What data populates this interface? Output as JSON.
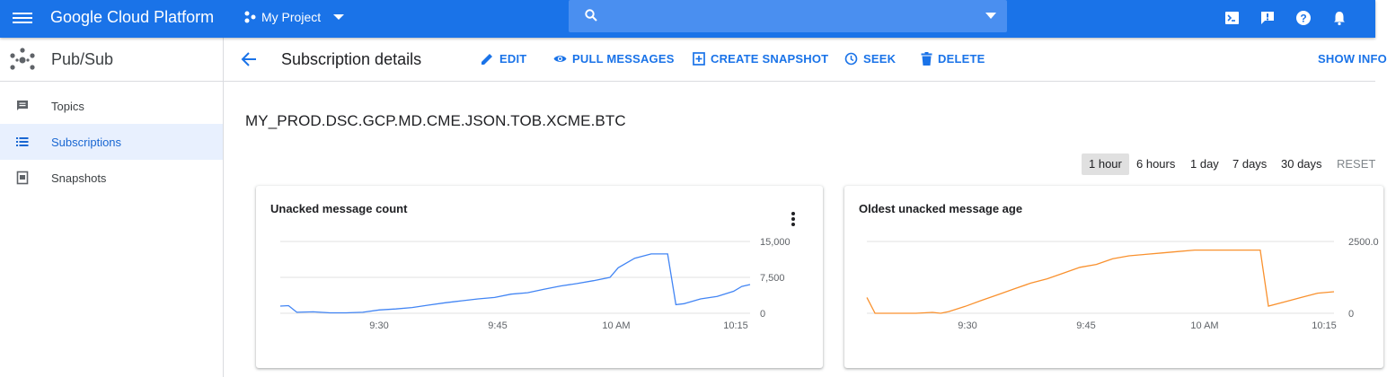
{
  "topbar": {
    "brand": "Google Cloud Platform",
    "project": "My Project",
    "search_placeholder": "",
    "icons": [
      "menu-icon",
      "project-dots-icon",
      "search-icon",
      "dropdown-arrow-icon",
      "cloud-shell-icon",
      "notifications-alert-icon",
      "help-icon",
      "bell-icon"
    ]
  },
  "sidebar": {
    "title": "Pub/Sub",
    "items": [
      {
        "label": "Topics",
        "icon": "topics-icon"
      },
      {
        "label": "Subscriptions",
        "icon": "list-icon",
        "active": true
      },
      {
        "label": "Snapshots",
        "icon": "snapshot-icon"
      }
    ]
  },
  "header": {
    "title": "Subscription details",
    "actions": {
      "edit": "EDIT",
      "pull": "PULL MESSAGES",
      "snapshot": "CREATE SNAPSHOT",
      "seek": "SEEK",
      "delete": "DELETE",
      "info": "SHOW INFO"
    }
  },
  "main": {
    "subscription_id": "MY_PROD.DSC.GCP.MD.CME.JSON.TOB.XCME.BTC",
    "time_ranges": [
      "1 hour",
      "6 hours",
      "1 day",
      "7 days",
      "30 days"
    ],
    "selected_range": "1 hour",
    "reset": "RESET"
  },
  "colors": {
    "accent": "#1a73e8",
    "series_blue": "#4285f4",
    "series_orange": "#f9912e",
    "sidebar_active_bg": "#e8f0fe"
  },
  "chart_data": [
    {
      "type": "line",
      "title": "Unacked message count",
      "x_ticks": [
        "9:30",
        "9:45",
        "10 AM",
        "10:15"
      ],
      "y_ticks": [
        "15,000",
        "7,500",
        "0"
      ],
      "ylim": [
        0,
        15000
      ],
      "grid": true,
      "series": [
        {
          "color": "#4285f4",
          "x": [
            "9:19",
            "9:20",
            "9:21",
            "9:23",
            "9:25",
            "9:27",
            "9:29",
            "9:31",
            "9:33",
            "9:35",
            "9:37",
            "9:39",
            "9:41",
            "9:43",
            "9:45",
            "9:47",
            "9:49",
            "9:51",
            "9:53",
            "9:55",
            "9:57",
            "9:59",
            "10:00",
            "10:02",
            "10:04",
            "10:06",
            "10:07",
            "10:08",
            "10:10",
            "10:12",
            "10:14",
            "10:15",
            "10:16"
          ],
          "y": [
            1500,
            1600,
            200,
            300,
            100,
            100,
            200,
            700,
            900,
            1200,
            1700,
            2200,
            2600,
            3000,
            3300,
            4000,
            4300,
            5000,
            5700,
            6200,
            6800,
            7500,
            9500,
            11500,
            12400,
            12400,
            1800,
            2000,
            3000,
            3500,
            4600,
            5600,
            6000
          ]
        }
      ]
    },
    {
      "type": "line",
      "title": "Oldest unacked message age",
      "x_ticks": [
        "9:30",
        "9:45",
        "10 AM",
        "10:15"
      ],
      "y_ticks": [
        "2500.0",
        "0"
      ],
      "ylim": [
        0,
        2500
      ],
      "grid": true,
      "series": [
        {
          "color": "#f9912e",
          "x": [
            "9:19",
            "9:19",
            "9:20",
            "9:23",
            "9:25",
            "9:27",
            "9:28",
            "9:29",
            "9:31",
            "9:33",
            "9:35",
            "9:37",
            "9:39",
            "9:41",
            "9:43",
            "9:45",
            "9:47",
            "9:49",
            "9:51",
            "9:53",
            "9:55",
            "9:57",
            "9:59",
            "10:01",
            "10:03",
            "10:05",
            "10:07",
            "10:08",
            "10:10",
            "10:12",
            "10:14",
            "10:16"
          ],
          "y": [
            550,
            550,
            0,
            0,
            0,
            30,
            0,
            60,
            240,
            450,
            650,
            850,
            1050,
            1200,
            1400,
            1600,
            1700,
            1900,
            2000,
            2050,
            2100,
            2150,
            2200,
            2200,
            2200,
            2200,
            2200,
            250,
            400,
            550,
            700,
            750
          ]
        }
      ]
    }
  ]
}
